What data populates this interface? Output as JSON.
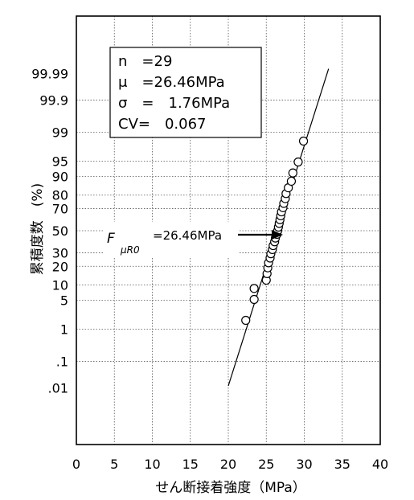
{
  "chart_data": {
    "type": "scatter",
    "title": "",
    "xlabel": "せん断接着強度（MPa）",
    "ylabel": "累積度数　(%)",
    "xlim": [
      0,
      40
    ],
    "xticks": [
      "0",
      "5",
      "10",
      "15",
      "20",
      "25",
      "30",
      "35",
      "40"
    ],
    "y_scale": "normal-probability",
    "ylim": [
      0.01,
      99.99
    ],
    "yticks": [
      {
        "p": 99.99,
        "label": "99.99"
      },
      {
        "p": 99.9,
        "label": "99.9"
      },
      {
        "p": 99,
        "label": "99"
      },
      {
        "p": 95,
        "label": "95"
      },
      {
        "p": 90,
        "label": "90"
      },
      {
        "p": 80,
        "label": "80"
      },
      {
        "p": 70,
        "label": "70"
      },
      {
        "p": 50,
        "label": "50"
      },
      {
        "p": 30,
        "label": "30"
      },
      {
        "p": 20,
        "label": "20"
      },
      {
        "p": 10,
        "label": "10"
      },
      {
        "p": 5,
        "label": "5"
      },
      {
        "p": 1,
        "label": "1"
      },
      {
        "p": 0.1,
        "label": ".1"
      },
      {
        "p": 0.01,
        "label": ".01"
      }
    ],
    "grid": true,
    "grid_style": "dotted",
    "points": [
      {
        "x": 22.3,
        "p": 1.7
      },
      {
        "x": 23.4,
        "p": 5.2
      },
      {
        "x": 23.4,
        "p": 8.6
      },
      {
        "x": 25.0,
        "p": 12.1
      },
      {
        "x": 25.1,
        "p": 15.5
      },
      {
        "x": 25.2,
        "p": 19.0
      },
      {
        "x": 25.3,
        "p": 22.4
      },
      {
        "x": 25.5,
        "p": 25.9
      },
      {
        "x": 25.6,
        "p": 29.3
      },
      {
        "x": 25.8,
        "p": 32.8
      },
      {
        "x": 25.9,
        "p": 36.2
      },
      {
        "x": 26.1,
        "p": 39.7
      },
      {
        "x": 26.2,
        "p": 43.1
      },
      {
        "x": 26.4,
        "p": 46.6
      },
      {
        "x": 26.5,
        "p": 50.0
      },
      {
        "x": 26.6,
        "p": 53.4
      },
      {
        "x": 26.7,
        "p": 56.9
      },
      {
        "x": 26.8,
        "p": 60.3
      },
      {
        "x": 26.9,
        "p": 63.8
      },
      {
        "x": 27.0,
        "p": 67.2
      },
      {
        "x": 27.2,
        "p": 70.7
      },
      {
        "x": 27.3,
        "p": 74.1
      },
      {
        "x": 27.5,
        "p": 77.6
      },
      {
        "x": 27.6,
        "p": 81.0
      },
      {
        "x": 27.9,
        "p": 84.5
      },
      {
        "x": 28.3,
        "p": 87.9
      },
      {
        "x": 28.5,
        "p": 91.4
      },
      {
        "x": 29.2,
        "p": 94.8
      },
      {
        "x": 29.9,
        "p": 98.3
      }
    ],
    "fit_line": {
      "mean": 26.46,
      "sd": 1.76
    },
    "stats_box": [
      "n　=29",
      "μ　=26.46MPa",
      "σ　=　1.76MPa",
      "CV=　0.067"
    ],
    "annotation": {
      "symbol": "F",
      "subscript": "μR0",
      "value": "=26.46MPa",
      "x": 26.46,
      "p": 50
    }
  }
}
